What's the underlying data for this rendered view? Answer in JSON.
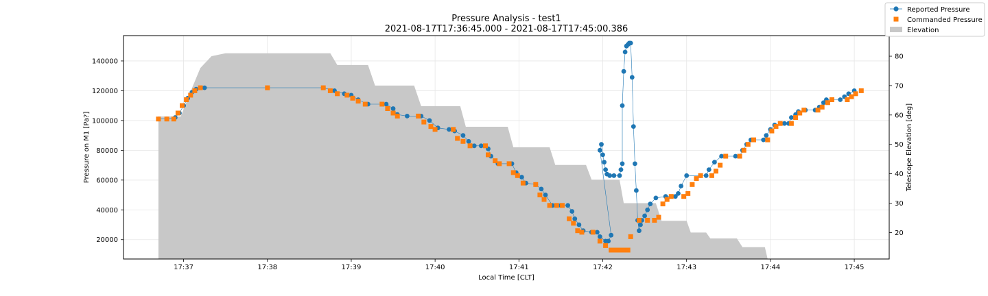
{
  "chart_data": {
    "type": "scatter",
    "title": "Pressure Analysis - test1",
    "subtitle": "2021-08-17T17:36:45.000 - 2021-08-17T17:45:00.386",
    "xlabel": "Local Time [CLT]",
    "ylabel": "Pressure on M1 [Pa?]",
    "y2label": "Telescope Elevation [deg]",
    "x_ticks": [
      "17:37",
      "17:38",
      "17:39",
      "17:40",
      "17:41",
      "17:42",
      "17:43",
      "17:44",
      "17:45"
    ],
    "x_tick_minutes": [
      37,
      38,
      39,
      40,
      41,
      42,
      43,
      44,
      45
    ],
    "y_ticks": [
      20000,
      40000,
      60000,
      80000,
      100000,
      120000,
      140000
    ],
    "y_tick_labels": [
      "20000",
      "40000",
      "60000",
      "80000",
      "100000",
      "120000",
      "140000"
    ],
    "y2_ticks": [
      20,
      30,
      40,
      50,
      60,
      70,
      80
    ],
    "y2_tick_labels": [
      "20",
      "30",
      "40",
      "50",
      "60",
      "70",
      "80"
    ],
    "xlim": [
      "17:36:17",
      "17:45:25"
    ],
    "ylim": [
      7000,
      157000
    ],
    "y2lim": [
      11,
      87
    ],
    "grid": true,
    "legend_position": "top-right",
    "colors": {
      "reported": "#1f77b4",
      "commanded": "#ff7f0e",
      "elevation": "#c8c8c8",
      "grid": "#e6e6e6"
    },
    "series": [
      {
        "name": "Reported Pressure",
        "marker": "circle",
        "axis": "left",
        "points": [
          [
            "17:36:42",
            101000
          ],
          [
            "17:36:48",
            101000
          ],
          [
            "17:36:54",
            102000
          ],
          [
            "17:36:57",
            105000
          ],
          [
            "17:37:00",
            110000
          ],
          [
            "17:37:03",
            115000
          ],
          [
            "17:37:06",
            119000
          ],
          [
            "17:37:09",
            121000
          ],
          [
            "17:37:15",
            122000
          ],
          [
            "17:38:00",
            122000
          ],
          [
            "17:38:40",
            122000
          ],
          [
            "17:38:48",
            120000
          ],
          [
            "17:38:55",
            118000
          ],
          [
            "17:39:00",
            117000
          ],
          [
            "17:39:05",
            114000
          ],
          [
            "17:39:12",
            111000
          ],
          [
            "17:39:25",
            111000
          ],
          [
            "17:39:30",
            108000
          ],
          [
            "17:39:33",
            104000
          ],
          [
            "17:39:40",
            103000
          ],
          [
            "17:39:50",
            103000
          ],
          [
            "17:39:56",
            100000
          ],
          [
            "17:40:02",
            95000
          ],
          [
            "17:40:10",
            94000
          ],
          [
            "17:40:14",
            93000
          ],
          [
            "17:40:20",
            90000
          ],
          [
            "17:40:24",
            86000
          ],
          [
            "17:40:28",
            83000
          ],
          [
            "17:40:33",
            83000
          ],
          [
            "17:40:38",
            81000
          ],
          [
            "17:40:40",
            76000
          ],
          [
            "17:40:45",
            71000
          ],
          [
            "17:40:55",
            71000
          ],
          [
            "17:40:58",
            65000
          ],
          [
            "17:41:02",
            62000
          ],
          [
            "17:41:05",
            58000
          ],
          [
            "17:41:12",
            57000
          ],
          [
            "17:41:16",
            54000
          ],
          [
            "17:41:19",
            50000
          ],
          [
            "17:41:24",
            43000
          ],
          [
            "17:41:30",
            43000
          ],
          [
            "17:41:35",
            43000
          ],
          [
            "17:41:38",
            39000
          ],
          [
            "17:41:40",
            34000
          ],
          [
            "17:41:43",
            30000
          ],
          [
            "17:41:46",
            26000
          ],
          [
            "17:41:52",
            25000
          ],
          [
            "17:41:56",
            25000
          ],
          [
            "17:41:58",
            22000
          ],
          [
            "17:42:02",
            19000
          ],
          [
            "17:42:04",
            19000
          ],
          [
            "17:42:06",
            23000
          ],
          [
            "17:41:58",
            80000
          ],
          [
            "17:41:59",
            84000
          ],
          [
            "17:42:00",
            77000
          ],
          [
            "17:42:01",
            72000
          ],
          [
            "17:42:02",
            67000
          ],
          [
            "17:42:03",
            64000
          ],
          [
            "17:42:05",
            63000
          ],
          [
            "17:42:08",
            63000
          ],
          [
            "17:42:12",
            63000
          ],
          [
            "17:42:13",
            67000
          ],
          [
            "17:42:14",
            71000
          ],
          [
            "17:42:14",
            110000
          ],
          [
            "17:42:15",
            133000
          ],
          [
            "17:42:16",
            146000
          ],
          [
            "17:42:17",
            150000
          ],
          [
            "17:42:18",
            151000
          ],
          [
            "17:42:19",
            152000
          ],
          [
            "17:42:20",
            152000
          ],
          [
            "17:42:21",
            129000
          ],
          [
            "17:42:22",
            96000
          ],
          [
            "17:42:23",
            71000
          ],
          [
            "17:42:24",
            53000
          ],
          [
            "17:42:25",
            33000
          ],
          [
            "17:42:26",
            26000
          ],
          [
            "17:42:27",
            30000
          ],
          [
            "17:42:28",
            33000
          ],
          [
            "17:42:30",
            36000
          ],
          [
            "17:42:32",
            40000
          ],
          [
            "17:42:34",
            44000
          ],
          [
            "17:42:38",
            48000
          ],
          [
            "17:42:45",
            49000
          ],
          [
            "17:42:52",
            49000
          ],
          [
            "17:42:54",
            51000
          ],
          [
            "17:42:56",
            56000
          ],
          [
            "17:43:00",
            63000
          ],
          [
            "17:43:10",
            63000
          ],
          [
            "17:43:14",
            63000
          ],
          [
            "17:43:16",
            67000
          ],
          [
            "17:43:20",
            72000
          ],
          [
            "17:43:25",
            76000
          ],
          [
            "17:43:35",
            76000
          ],
          [
            "17:43:38",
            76000
          ],
          [
            "17:43:40",
            80000
          ],
          [
            "17:43:43",
            84000
          ],
          [
            "17:43:46",
            87000
          ],
          [
            "17:43:55",
            87000
          ],
          [
            "17:43:57",
            90000
          ],
          [
            "17:44:00",
            94000
          ],
          [
            "17:44:03",
            97000
          ],
          [
            "17:44:10",
            98000
          ],
          [
            "17:44:13",
            98000
          ],
          [
            "17:44:15",
            102000
          ],
          [
            "17:44:18",
            104000
          ],
          [
            "17:44:20",
            106000
          ],
          [
            "17:44:25",
            107000
          ],
          [
            "17:44:32",
            107000
          ],
          [
            "17:44:35",
            109000
          ],
          [
            "17:44:38",
            112000
          ],
          [
            "17:44:40",
            114000
          ],
          [
            "17:44:50",
            114000
          ],
          [
            "17:44:53",
            116000
          ],
          [
            "17:44:56",
            118000
          ],
          [
            "17:45:00",
            120000
          ]
        ]
      },
      {
        "name": "Commanded Pressure",
        "marker": "square",
        "axis": "left",
        "points": [
          [
            "17:36:42",
            101000
          ],
          [
            "17:36:48",
            101000
          ],
          [
            "17:36:53",
            101000
          ],
          [
            "17:36:56",
            105000
          ],
          [
            "17:36:59",
            110000
          ],
          [
            "17:37:02",
            114000
          ],
          [
            "17:37:05",
            117000
          ],
          [
            "17:37:08",
            120000
          ],
          [
            "17:37:12",
            122000
          ],
          [
            "17:38:00",
            122000
          ],
          [
            "17:38:40",
            122000
          ],
          [
            "17:38:45",
            120000
          ],
          [
            "17:38:50",
            118000
          ],
          [
            "17:38:57",
            117000
          ],
          [
            "17:39:01",
            115000
          ],
          [
            "17:39:05",
            113000
          ],
          [
            "17:39:10",
            111000
          ],
          [
            "17:39:22",
            111000
          ],
          [
            "17:39:26",
            108000
          ],
          [
            "17:39:30",
            105000
          ],
          [
            "17:39:33",
            103000
          ],
          [
            "17:39:48",
            103000
          ],
          [
            "17:39:52",
            99000
          ],
          [
            "17:39:57",
            96000
          ],
          [
            "17:40:00",
            94000
          ],
          [
            "17:40:13",
            94000
          ],
          [
            "17:40:16",
            88000
          ],
          [
            "17:40:20",
            86000
          ],
          [
            "17:40:25",
            83000
          ],
          [
            "17:40:36",
            83000
          ],
          [
            "17:40:38",
            77000
          ],
          [
            "17:40:43",
            73000
          ],
          [
            "17:40:46",
            71000
          ],
          [
            "17:40:53",
            71000
          ],
          [
            "17:40:56",
            65000
          ],
          [
            "17:40:59",
            63000
          ],
          [
            "17:41:03",
            58000
          ],
          [
            "17:41:12",
            57000
          ],
          [
            "17:41:15",
            50000
          ],
          [
            "17:41:18",
            47000
          ],
          [
            "17:41:22",
            43000
          ],
          [
            "17:41:27",
            43000
          ],
          [
            "17:41:31",
            43000
          ],
          [
            "17:41:36",
            34000
          ],
          [
            "17:41:39",
            31000
          ],
          [
            "17:41:42",
            26000
          ],
          [
            "17:41:45",
            25000
          ],
          [
            "17:41:53",
            25000
          ],
          [
            "17:41:58",
            19000
          ],
          [
            "17:42:02",
            16000
          ],
          [
            "17:42:06",
            13000
          ],
          [
            "17:42:09",
            13000
          ],
          [
            "17:42:12",
            13000
          ],
          [
            "17:42:15",
            13000
          ],
          [
            "17:42:18",
            13000
          ],
          [
            "17:42:20",
            22000
          ],
          [
            "17:42:26",
            33000
          ],
          [
            "17:42:32",
            33000
          ],
          [
            "17:42:37",
            33000
          ],
          [
            "17:42:40",
            35000
          ],
          [
            "17:42:43",
            44000
          ],
          [
            "17:42:46",
            47000
          ],
          [
            "17:42:49",
            49000
          ],
          [
            "17:42:58",
            49000
          ],
          [
            "17:43:01",
            51000
          ],
          [
            "17:43:04",
            57000
          ],
          [
            "17:43:07",
            61000
          ],
          [
            "17:43:10",
            63000
          ],
          [
            "17:43:18",
            63000
          ],
          [
            "17:43:21",
            66000
          ],
          [
            "17:43:24",
            70000
          ],
          [
            "17:43:28",
            76000
          ],
          [
            "17:43:38",
            76000
          ],
          [
            "17:43:41",
            80000
          ],
          [
            "17:43:44",
            84000
          ],
          [
            "17:43:48",
            87000
          ],
          [
            "17:43:58",
            87000
          ],
          [
            "17:44:01",
            93000
          ],
          [
            "17:44:04",
            96000
          ],
          [
            "17:44:07",
            98000
          ],
          [
            "17:44:15",
            98000
          ],
          [
            "17:44:18",
            102000
          ],
          [
            "17:44:21",
            105000
          ],
          [
            "17:44:24",
            107000
          ],
          [
            "17:44:34",
            107000
          ],
          [
            "17:44:37",
            109000
          ],
          [
            "17:44:41",
            112000
          ],
          [
            "17:44:44",
            114000
          ],
          [
            "17:44:55",
            114000
          ],
          [
            "17:44:58",
            116000
          ],
          [
            "17:45:01",
            118000
          ],
          [
            "17:45:05",
            120000
          ]
        ]
      },
      {
        "name": "Elevation",
        "type": "area",
        "axis": "right",
        "points": [
          [
            "17:36:42",
            11
          ],
          [
            "17:36:42",
            59.5
          ],
          [
            "17:36:58",
            59.5
          ],
          [
            "17:37:05",
            68
          ],
          [
            "17:37:12",
            76
          ],
          [
            "17:37:20",
            80
          ],
          [
            "17:37:30",
            81
          ],
          [
            "17:38:45",
            81
          ],
          [
            "17:38:50",
            77
          ],
          [
            "17:39:12",
            77
          ],
          [
            "17:39:17",
            70
          ],
          [
            "17:39:45",
            70
          ],
          [
            "17:39:50",
            63
          ],
          [
            "17:40:18",
            63
          ],
          [
            "17:40:22",
            56
          ],
          [
            "17:40:52",
            56
          ],
          [
            "17:40:56",
            49
          ],
          [
            "17:41:22",
            49
          ],
          [
            "17:41:26",
            43
          ],
          [
            "17:41:48",
            43
          ],
          [
            "17:41:52",
            38
          ],
          [
            "17:42:12",
            38
          ],
          [
            "17:42:15",
            30
          ],
          [
            "17:42:38",
            30
          ],
          [
            "17:42:42",
            24
          ],
          [
            "17:43:00",
            24
          ],
          [
            "17:43:03",
            20
          ],
          [
            "17:43:14",
            20
          ],
          [
            "17:43:17",
            18
          ],
          [
            "17:43:36",
            18
          ],
          [
            "17:43:40",
            15
          ],
          [
            "17:43:56",
            15
          ],
          [
            "17:43:58",
            11
          ]
        ]
      }
    ]
  }
}
